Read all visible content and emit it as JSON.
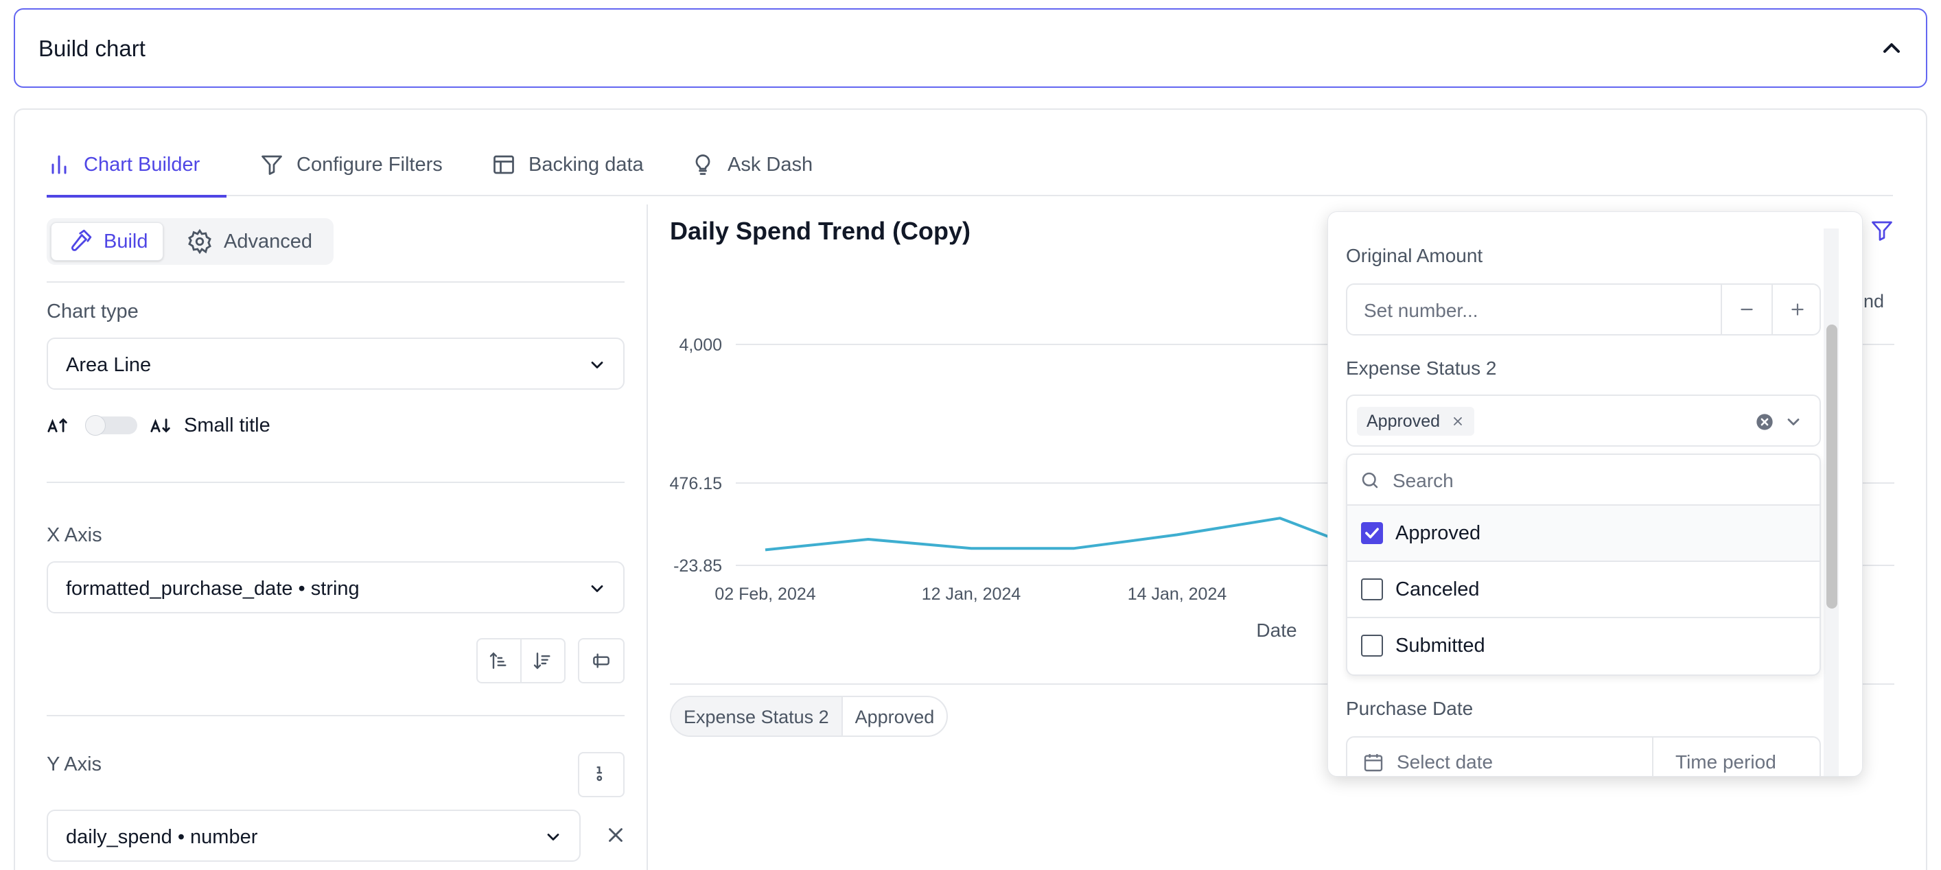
{
  "header": {
    "build_chart_label": "Build chart"
  },
  "tabs": [
    {
      "label": "Chart Builder",
      "icon": "bar-chart-icon"
    },
    {
      "label": "Configure Filters",
      "icon": "filter-icon"
    },
    {
      "label": "Backing data",
      "icon": "table-icon"
    },
    {
      "label": "Ask Dash",
      "icon": "lightbulb-icon"
    }
  ],
  "builder": {
    "modes": [
      {
        "label": "Build",
        "icon": "hammer-icon"
      },
      {
        "label": "Advanced",
        "icon": "gear-icon"
      }
    ],
    "chart_type_label": "Chart type",
    "chart_type_value": "Area Line",
    "small_title_label": "Small title",
    "x_axis_label": "X Axis",
    "x_axis_value": "formatted_purchase_date • string",
    "y_axis_label": "Y Axis",
    "y_axis_value": "daily_spend • number"
  },
  "chart": {
    "title": "Daily Spend Trend (Copy)",
    "legend_fragment": "end",
    "filter_chip_key": "Expense Status 2",
    "filter_chip_value": "Approved"
  },
  "chart_data": {
    "type": "line",
    "title": "Daily Spend Trend (Copy)",
    "xlabel": "Date",
    "ylabel": "",
    "y_ticks": [
      "4,000",
      "476.15",
      "-23.85"
    ],
    "x_ticks": [
      "02 Feb, 2024",
      "12 Jan, 2024",
      "14 Jan, 2024"
    ],
    "series": [
      {
        "color": "#3eaed0",
        "values": [
          30,
          100,
          40,
          40,
          130,
          240,
          -20,
          120,
          70
        ]
      }
    ]
  },
  "filter_popover": {
    "original_amount_label": "Original Amount",
    "original_amount_placeholder": "Set number...",
    "expense_status_label": "Expense Status 2",
    "selected_tag": "Approved",
    "search_placeholder": "Search",
    "options": [
      {
        "label": "Approved",
        "checked": true
      },
      {
        "label": "Canceled",
        "checked": false
      },
      {
        "label": "Submitted",
        "checked": false
      }
    ],
    "purchase_date_label": "Purchase Date",
    "date_placeholder": "Select date",
    "time_period_placeholder": "Time period"
  },
  "colors": {
    "accent": "#4f46e5",
    "line": "#3eaed0",
    "border": "#e5e7eb"
  }
}
